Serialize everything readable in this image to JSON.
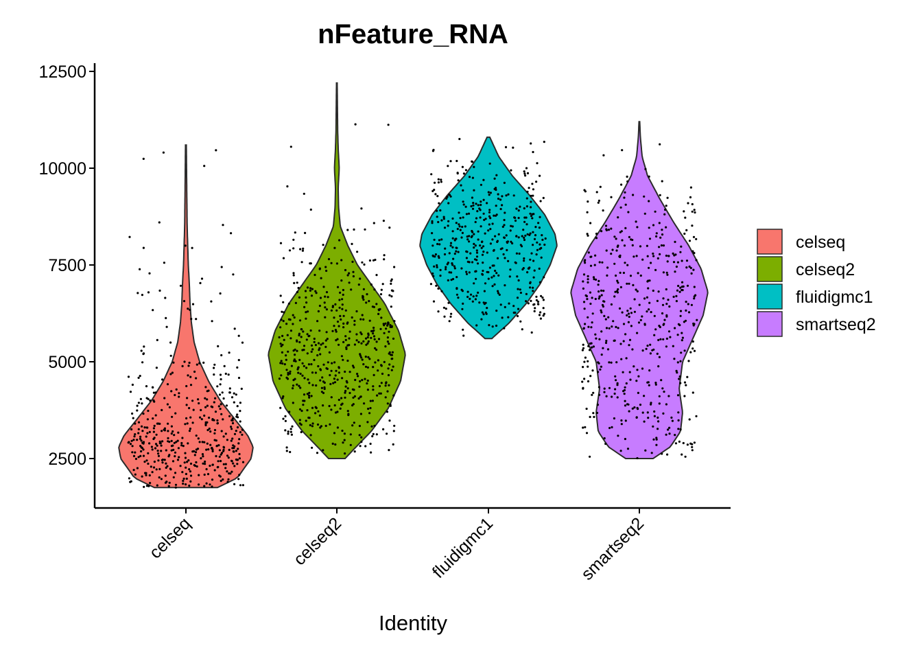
{
  "chart_data": {
    "type": "violin",
    "title": "nFeature_RNA",
    "xlabel": "Identity",
    "ylabel": "",
    "ylim": [
      1250,
      12800
    ],
    "yticks": [
      2500,
      5000,
      7500,
      10000,
      12500
    ],
    "categories": [
      "celseq",
      "celseq2",
      "fluidigmc1",
      "smartseq2"
    ],
    "colors": [
      "#F8766D",
      "#7CAE00",
      "#00BFC4",
      "#C77CFF"
    ],
    "legend_position": "right",
    "grid": false,
    "series": [
      {
        "name": "celseq",
        "min": 1750,
        "max": 10600,
        "profile": [
          [
            1750,
            0.46
          ],
          [
            2000,
            0.75
          ],
          [
            2500,
            0.95
          ],
          [
            2800,
            0.98
          ],
          [
            3100,
            0.9
          ],
          [
            3500,
            0.72
          ],
          [
            4000,
            0.5
          ],
          [
            4500,
            0.33
          ],
          [
            5000,
            0.2
          ],
          [
            5500,
            0.12
          ],
          [
            6000,
            0.08
          ],
          [
            6500,
            0.06
          ],
          [
            7000,
            0.05
          ],
          [
            7500,
            0.035
          ],
          [
            8500,
            0.018
          ],
          [
            9500,
            0.012
          ],
          [
            10600,
            0.006
          ]
        ],
        "points_n": 480
      },
      {
        "name": "celseq2",
        "min": 2500,
        "max": 12200,
        "profile": [
          [
            2500,
            0.12
          ],
          [
            2800,
            0.28
          ],
          [
            3200,
            0.5
          ],
          [
            3800,
            0.75
          ],
          [
            4500,
            0.93
          ],
          [
            5200,
            1.0
          ],
          [
            5800,
            0.9
          ],
          [
            6500,
            0.7
          ],
          [
            7000,
            0.5
          ],
          [
            7500,
            0.3
          ],
          [
            8000,
            0.16
          ],
          [
            8500,
            0.05
          ],
          [
            9000,
            0.025
          ],
          [
            9500,
            0.02
          ],
          [
            10000,
            0.035
          ],
          [
            10500,
            0.02
          ],
          [
            11000,
            0.012
          ],
          [
            12200,
            0.005
          ]
        ],
        "points_n": 560
      },
      {
        "name": "fluidigmc1",
        "min": 5600,
        "max": 10800,
        "profile": [
          [
            5600,
            0.05
          ],
          [
            6000,
            0.3
          ],
          [
            6500,
            0.55
          ],
          [
            7000,
            0.75
          ],
          [
            7500,
            0.9
          ],
          [
            8000,
            1.0
          ],
          [
            8300,
            0.97
          ],
          [
            8800,
            0.82
          ],
          [
            9300,
            0.6
          ],
          [
            9800,
            0.35
          ],
          [
            10300,
            0.15
          ],
          [
            10800,
            0.02
          ]
        ],
        "points_n": 460
      },
      {
        "name": "smartseq2",
        "min": 2500,
        "max": 11200,
        "profile": [
          [
            2500,
            0.2
          ],
          [
            2800,
            0.45
          ],
          [
            3200,
            0.6
          ],
          [
            3700,
            0.63
          ],
          [
            4300,
            0.58
          ],
          [
            5000,
            0.63
          ],
          [
            5600,
            0.78
          ],
          [
            6200,
            0.93
          ],
          [
            6800,
            1.0
          ],
          [
            7400,
            0.9
          ],
          [
            8000,
            0.72
          ],
          [
            8600,
            0.5
          ],
          [
            9200,
            0.3
          ],
          [
            9800,
            0.12
          ],
          [
            10300,
            0.04
          ],
          [
            10800,
            0.015
          ],
          [
            11200,
            0.005
          ]
        ],
        "points_n": 520
      }
    ]
  }
}
